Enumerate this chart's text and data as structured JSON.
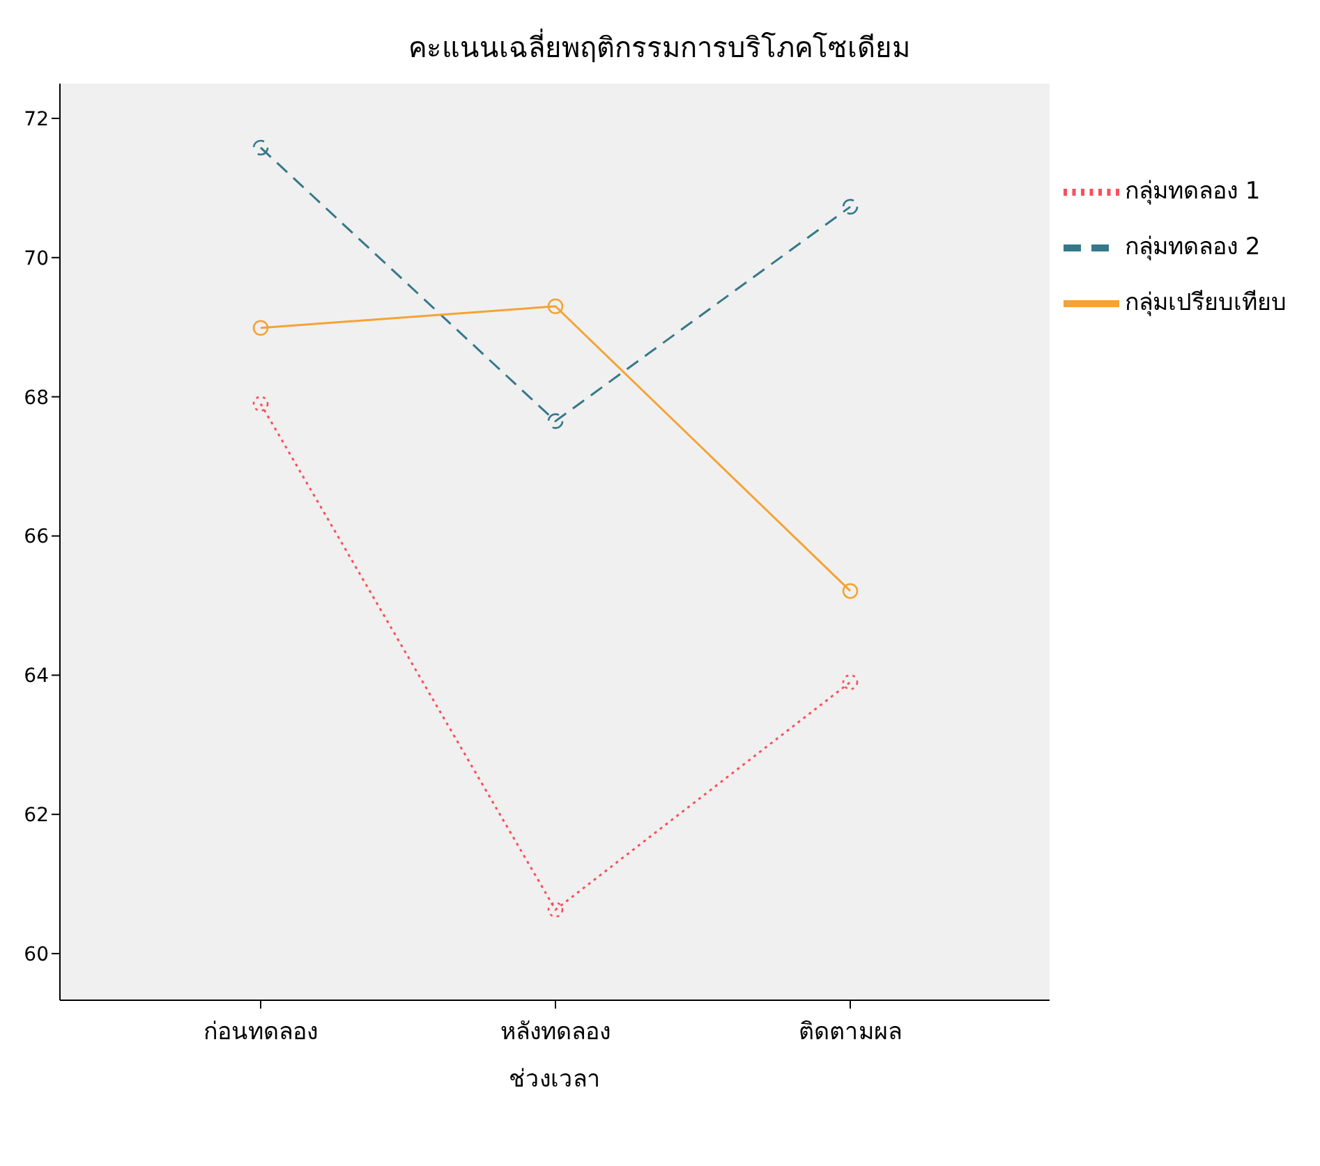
{
  "chart_data": {
    "type": "line",
    "title": "คะแนนเฉลี่ยพฤติกรรมการบริโภคโซเดียม",
    "xlabel": "ช่วงเวลา",
    "categories": [
      "ก่อนทดลอง",
      "หลังทดลอง",
      "ติดตามผล"
    ],
    "series": [
      {
        "name": "กลุ่มทดลอง 1",
        "color": "#f8505a",
        "line_style": "dotted",
        "values": [
          67.9,
          60.63,
          63.9
        ]
      },
      {
        "name": "กลุ่มทดลอง 2",
        "color": "#35788a",
        "line_style": "dashed",
        "values": [
          71.58,
          67.65,
          70.73
        ]
      },
      {
        "name": "กลุ่มเปรียบเทียบ",
        "color": "#f5a334",
        "line_style": "solid",
        "values": [
          68.99,
          69.3,
          65.21
        ]
      }
    ],
    "ylim": [
      59.33,
      72.5
    ],
    "yticks": [
      60,
      62,
      64,
      66,
      68,
      70,
      72
    ],
    "legend": "right",
    "marker": "circle"
  }
}
